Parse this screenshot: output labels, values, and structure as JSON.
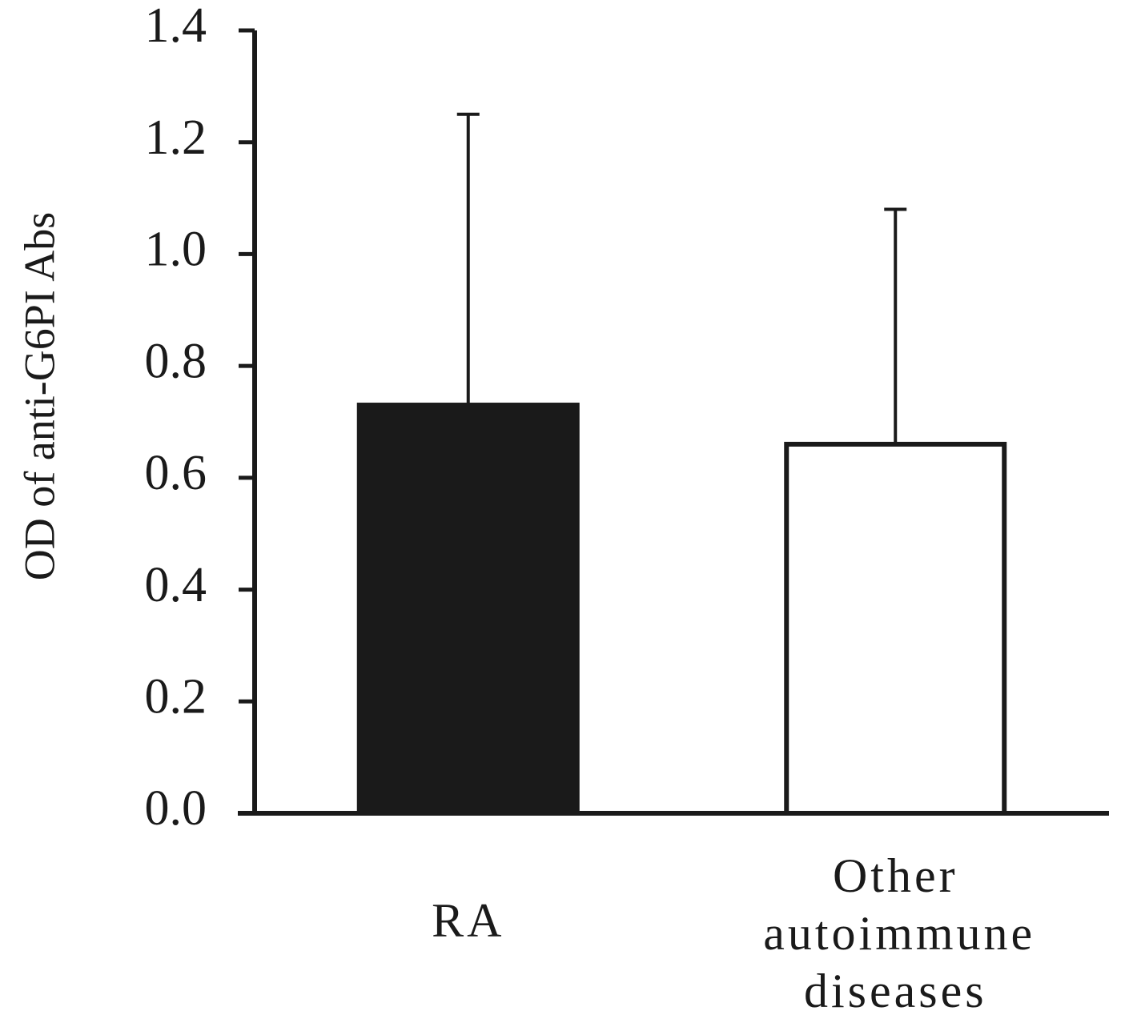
{
  "chart_data": {
    "type": "bar",
    "y_label": "OD of anti-G6PI Abs",
    "categories": [
      "RA",
      "Other autoimmune diseases"
    ],
    "series": [
      {
        "values": [
          0.73,
          0.66
        ],
        "errors": [
          0.52,
          0.42
        ],
        "colors": [
          "#1a1a1a",
          "#ffffff"
        ]
      }
    ],
    "ylim": [
      0,
      1.4
    ],
    "yticks": [
      {
        "value": 0,
        "label": "0.0"
      },
      0.2,
      0.4,
      0.6,
      0.8,
      {
        "value": 1,
        "label": "1.0"
      },
      1.2,
      1.4
    ],
    "grid": false
  }
}
